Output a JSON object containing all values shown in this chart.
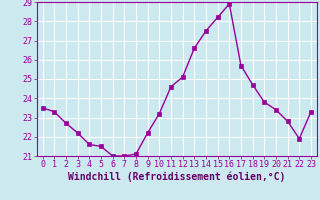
{
  "x": [
    0,
    1,
    2,
    3,
    4,
    5,
    6,
    7,
    8,
    9,
    10,
    11,
    12,
    13,
    14,
    15,
    16,
    17,
    18,
    19,
    20,
    21,
    22,
    23
  ],
  "y": [
    23.5,
    23.3,
    22.7,
    22.2,
    21.6,
    21.5,
    21.0,
    21.0,
    21.1,
    22.2,
    23.2,
    24.6,
    25.1,
    26.6,
    27.5,
    28.2,
    28.9,
    25.7,
    24.7,
    23.8,
    23.4,
    22.8,
    21.9,
    23.3
  ],
  "line_color": "#990099",
  "marker": "s",
  "marker_size": 2.5,
  "linewidth": 1.0,
  "xlabel": "Windchill (Refroidissement éolien,°C)",
  "xlabel_fontsize": 7,
  "xlabel_color": "#660066",
  "xtick_labels": [
    "0",
    "1",
    "2",
    "3",
    "4",
    "5",
    "6",
    "7",
    "8",
    "9",
    "10",
    "11",
    "12",
    "13",
    "14",
    "15",
    "16",
    "17",
    "18",
    "19",
    "20",
    "21",
    "22",
    "23"
  ],
  "ylim": [
    21,
    29
  ],
  "yticks": [
    21,
    22,
    23,
    24,
    25,
    26,
    27,
    28,
    29
  ],
  "background_color": "#cce9f0",
  "grid_color": "#ffffff",
  "tick_color": "#990099",
  "tick_fontsize": 6,
  "fig_bg": "#cce9f0"
}
